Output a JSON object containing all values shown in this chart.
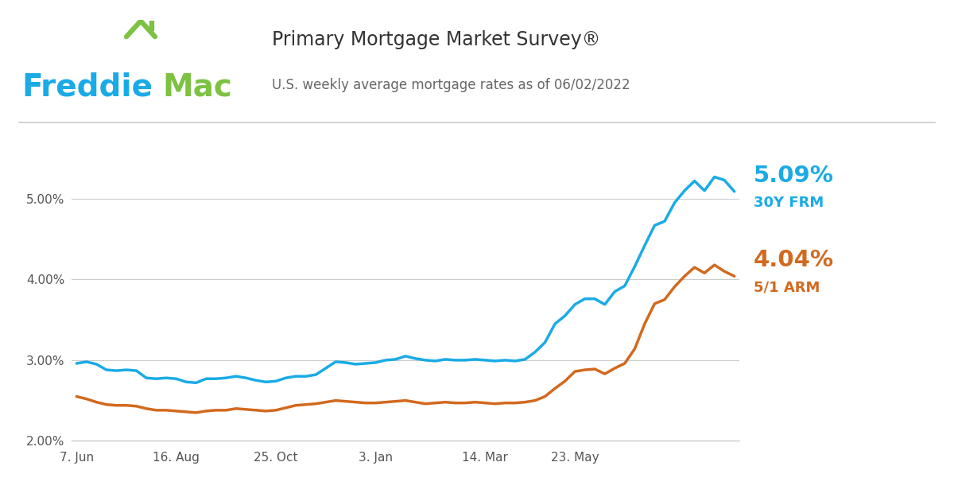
{
  "title": "Primary Mortgage Market Survey®",
  "subtitle": "U.S. weekly average mortgage rates as of 06/02/2022",
  "title_color": "#333333",
  "subtitle_color": "#666666",
  "freddie_blue": "#1AABE6",
  "freddie_green": "#7DC242",
  "line_frm_color": "#1AABE6",
  "line_arm_color": "#D2691E",
  "label_frm_pct": "5.09%",
  "label_frm_name": "30Y FRM",
  "label_arm_pct": "4.04%",
  "label_arm_name": "5/1 ARM",
  "ylim": [
    2.0,
    5.6
  ],
  "yticks": [
    2.0,
    3.0,
    4.0,
    5.0
  ],
  "xlabel_dates": [
    "7. Jun",
    "16. Aug",
    "25. Oct",
    "3. Jan",
    "14. Mar",
    "23. May"
  ],
  "x_tick_positions": [
    0,
    10,
    20,
    30,
    41,
    50
  ],
  "background_color": "#ffffff",
  "grid_color": "#cccccc",
  "frm_data": [
    2.96,
    2.98,
    2.95,
    2.88,
    2.87,
    2.88,
    2.87,
    2.78,
    2.77,
    2.78,
    2.77,
    2.73,
    2.72,
    2.77,
    2.77,
    2.78,
    2.8,
    2.78,
    2.75,
    2.73,
    2.74,
    2.78,
    2.8,
    2.8,
    2.82,
    2.9,
    2.98,
    2.97,
    2.95,
    2.96,
    2.97,
    3.0,
    3.01,
    3.05,
    3.02,
    3.0,
    2.99,
    3.01,
    3.0,
    3.0,
    3.01,
    3.0,
    2.99,
    3.0,
    2.99,
    3.01,
    3.1,
    3.22,
    3.45,
    3.55,
    3.69,
    3.76,
    3.76,
    3.69,
    3.85,
    3.92,
    4.16,
    4.42,
    4.67,
    4.72,
    4.95,
    5.1,
    5.22,
    5.1,
    5.27,
    5.23,
    5.09
  ],
  "arm_data": [
    2.55,
    2.52,
    2.48,
    2.45,
    2.44,
    2.44,
    2.43,
    2.4,
    2.38,
    2.38,
    2.37,
    2.36,
    2.35,
    2.37,
    2.38,
    2.38,
    2.4,
    2.39,
    2.38,
    2.37,
    2.38,
    2.41,
    2.44,
    2.45,
    2.46,
    2.48,
    2.5,
    2.49,
    2.48,
    2.47,
    2.47,
    2.48,
    2.49,
    2.5,
    2.48,
    2.46,
    2.47,
    2.48,
    2.47,
    2.47,
    2.48,
    2.47,
    2.46,
    2.47,
    2.47,
    2.48,
    2.5,
    2.55,
    2.65,
    2.74,
    2.86,
    2.88,
    2.89,
    2.83,
    2.9,
    2.96,
    3.14,
    3.45,
    3.7,
    3.75,
    3.91,
    4.04,
    4.15,
    4.08,
    4.18,
    4.1,
    4.04
  ]
}
